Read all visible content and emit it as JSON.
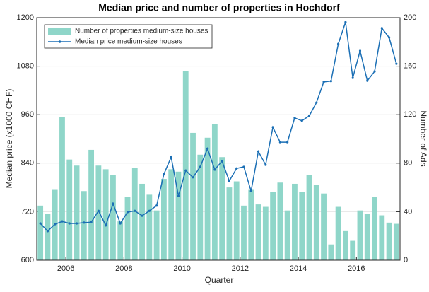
{
  "chart_data": {
    "type": "bar_line",
    "title": "Median price and number of properties in Hochdorf",
    "xlabel": "Quarter",
    "ylabel": "Median price (x1000 CHF)",
    "y2label": "Number of Ads",
    "x": [
      2005.125,
      2005.375,
      2005.625,
      2005.875,
      2006.125,
      2006.375,
      2006.625,
      2006.875,
      2007.125,
      2007.375,
      2007.625,
      2007.875,
      2008.125,
      2008.375,
      2008.625,
      2008.875,
      2009.125,
      2009.375,
      2009.625,
      2009.875,
      2010.125,
      2010.375,
      2010.625,
      2010.875,
      2011.125,
      2011.375,
      2011.625,
      2011.875,
      2012.125,
      2012.375,
      2012.625,
      2012.875,
      2013.125,
      2013.375,
      2013.625,
      2013.875,
      2014.125,
      2014.375,
      2014.625,
      2014.875,
      2015.125,
      2015.375,
      2015.625,
      2015.875,
      2016.125,
      2016.375,
      2016.625,
      2016.875,
      2017.125,
      2017.375
    ],
    "xlim": [
      2005,
      2017.5
    ],
    "xticks": [
      2006,
      2008,
      2010,
      2012,
      2014,
      2016
    ],
    "ylim": [
      600,
      1200
    ],
    "yticks": [
      600,
      720,
      840,
      960,
      1080,
      1200
    ],
    "y2lim": [
      0,
      200
    ],
    "y2ticks": [
      0,
      40,
      80,
      120,
      160,
      200
    ],
    "grid": true,
    "legend": "upper left",
    "series": [
      {
        "name": "Number of properties medium-size houses",
        "kind": "bar",
        "axis": "y2",
        "color": "#8fd6c9",
        "values": [
          45,
          38,
          58,
          118,
          83,
          78,
          57,
          91,
          78,
          75,
          70,
          32,
          52,
          76,
          63,
          54,
          41,
          67,
          75,
          73,
          156,
          105,
          87,
          101,
          112,
          85,
          60,
          65,
          45,
          58,
          46,
          44,
          56,
          64,
          41,
          63,
          56,
          70,
          62,
          55,
          13,
          44,
          24,
          16,
          41,
          38,
          52,
          37,
          31,
          30
        ]
      },
      {
        "name": "Median price medium-size houses",
        "kind": "line",
        "axis": "y",
        "color": "#1b6fb5",
        "values": [
          691,
          672,
          689,
          696,
          691,
          691,
          693,
          694,
          722,
          686,
          740,
          691,
          719,
          722,
          710,
          722,
          735,
          813,
          855,
          759,
          822,
          805,
          831,
          876,
          824,
          845,
          796,
          827,
          831,
          771,
          869,
          836,
          929,
          892,
          892,
          952,
          945,
          957,
          990,
          1041,
          1043,
          1135,
          1189,
          1051,
          1118,
          1044,
          1067,
          1174,
          1151,
          1086
        ]
      }
    ]
  }
}
